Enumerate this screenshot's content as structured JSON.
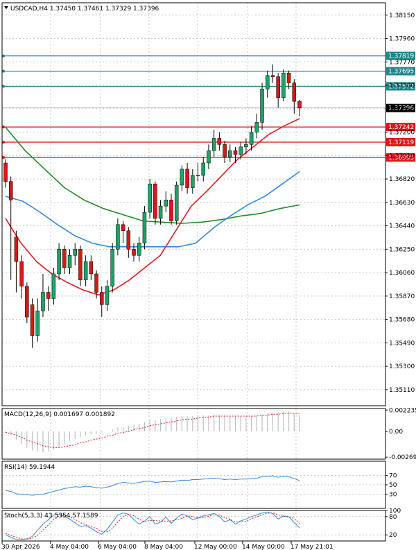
{
  "window_title": "USDCAD,H4",
  "ohlc": "1.37450 1.37461 1.37329 1.37396",
  "colors": {
    "bull": "#21a168",
    "bear": "#d21a1a",
    "sma_fast": "#e8171d",
    "sma_mid": "#2f8ae0",
    "sma_slow": "#1f8a2a",
    "level_resistance": "#1b8a8a",
    "level_support": "#e11515",
    "macd_signal": "#e8171d",
    "rsi": "#2f8ae0",
    "stoch_main": "#2f8ae0",
    "stoch_signal": "#e8171d"
  },
  "chart_data": [
    {
      "type": "candlestick",
      "name": "price",
      "header": "USDCAD,H4  1.37450 1.37461 1.37329 1.37396",
      "ylim": [
        1.3498,
        1.3825
      ],
      "y_ticks": [
        "1.38150",
        "1.37960",
        "1.37770",
        "1.37580",
        "1.37390",
        "1.37200",
        "1.37010",
        "1.36820",
        "1.36630",
        "1.36440",
        "1.36250",
        "1.36060",
        "1.35870",
        "1.35680",
        "1.35490",
        "1.35300",
        "1.35110"
      ],
      "x_labels": [
        "30 Apr 2026",
        "4 May 04:00",
        "6 May 04:00",
        "8 May 04:00",
        "12 May 00:00",
        "14 May 00:00",
        "17 May 21:01"
      ],
      "current_price_label": "1.37396",
      "levels": [
        {
          "value": 1.37819,
          "label": "1.37819",
          "kind": "resistance"
        },
        {
          "value": 1.37695,
          "label": "1.37695",
          "kind": "resistance"
        },
        {
          "value": 1.37572,
          "label": "1.37572",
          "kind": "resistance"
        },
        {
          "value": 1.37242,
          "label": "1.37242",
          "kind": "support"
        },
        {
          "value": 1.37119,
          "label": "1.37119",
          "kind": "support"
        },
        {
          "value": 1.36995,
          "label": "1.36995",
          "kind": "support"
        }
      ],
      "close": [
        1.368,
        1.3665,
        1.3615,
        1.3595,
        1.357,
        1.3555,
        1.3575,
        1.359,
        1.3585,
        1.3605,
        1.3625,
        1.361,
        1.362,
        1.3625,
        1.36,
        1.3615,
        1.3605,
        1.359,
        1.358,
        1.3595,
        1.3625,
        1.3645,
        1.364,
        1.3625,
        1.362,
        1.363,
        1.3655,
        1.3678,
        1.365,
        1.366,
        1.3665,
        1.3648,
        1.3677,
        1.369,
        1.3675,
        1.3685,
        1.3685,
        1.3695,
        1.3705,
        1.3715,
        1.371,
        1.37,
        1.3705,
        1.3702,
        1.3708,
        1.371,
        1.372,
        1.3728,
        1.3755,
        1.3766,
        1.3765,
        1.3748,
        1.3768,
        1.376,
        1.3745,
        1.374
      ],
      "candles": [
        {
          "o": 1.3695,
          "h": 1.3698,
          "l": 1.3675,
          "c": 1.368
        },
        {
          "o": 1.368,
          "h": 1.3684,
          "l": 1.36,
          "c": 1.3665
        },
        {
          "o": 1.3635,
          "h": 1.364,
          "l": 1.359,
          "c": 1.3615
        },
        {
          "o": 1.3615,
          "h": 1.362,
          "l": 1.3585,
          "c": 1.3595
        },
        {
          "o": 1.3595,
          "h": 1.3598,
          "l": 1.3565,
          "c": 1.357
        },
        {
          "o": 1.358,
          "h": 1.3585,
          "l": 1.3545,
          "c": 1.3555
        },
        {
          "o": 1.3555,
          "h": 1.3585,
          "l": 1.355,
          "c": 1.3575
        },
        {
          "o": 1.3575,
          "h": 1.3605,
          "l": 1.357,
          "c": 1.359
        },
        {
          "o": 1.359,
          "h": 1.3595,
          "l": 1.3575,
          "c": 1.3585
        },
        {
          "o": 1.3585,
          "h": 1.361,
          "l": 1.358,
          "c": 1.3605
        },
        {
          "o": 1.3605,
          "h": 1.363,
          "l": 1.36,
          "c": 1.3625
        },
        {
          "o": 1.3625,
          "h": 1.3628,
          "l": 1.3605,
          "c": 1.361
        },
        {
          "o": 1.361,
          "h": 1.3625,
          "l": 1.3605,
          "c": 1.362
        },
        {
          "o": 1.362,
          "h": 1.363,
          "l": 1.3612,
          "c": 1.3625
        },
        {
          "o": 1.3625,
          "h": 1.3628,
          "l": 1.3595,
          "c": 1.36
        },
        {
          "o": 1.36,
          "h": 1.362,
          "l": 1.3595,
          "c": 1.3615
        },
        {
          "o": 1.3615,
          "h": 1.362,
          "l": 1.36,
          "c": 1.3605
        },
        {
          "o": 1.3605,
          "h": 1.3608,
          "l": 1.3585,
          "c": 1.359
        },
        {
          "o": 1.359,
          "h": 1.3595,
          "l": 1.357,
          "c": 1.358
        },
        {
          "o": 1.358,
          "h": 1.36,
          "l": 1.3575,
          "c": 1.3595
        },
        {
          "o": 1.3595,
          "h": 1.363,
          "l": 1.359,
          "c": 1.3625
        },
        {
          "o": 1.3625,
          "h": 1.365,
          "l": 1.362,
          "c": 1.3645
        },
        {
          "o": 1.3645,
          "h": 1.3648,
          "l": 1.363,
          "c": 1.364
        },
        {
          "o": 1.364,
          "h": 1.3643,
          "l": 1.3618,
          "c": 1.3625
        },
        {
          "o": 1.3625,
          "h": 1.363,
          "l": 1.3615,
          "c": 1.362
        },
        {
          "o": 1.362,
          "h": 1.3635,
          "l": 1.3615,
          "c": 1.363
        },
        {
          "o": 1.363,
          "h": 1.366,
          "l": 1.3625,
          "c": 1.3655
        },
        {
          "o": 1.3655,
          "h": 1.3682,
          "l": 1.365,
          "c": 1.3678
        },
        {
          "o": 1.3678,
          "h": 1.368,
          "l": 1.3645,
          "c": 1.365
        },
        {
          "o": 1.365,
          "h": 1.3665,
          "l": 1.3645,
          "c": 1.366
        },
        {
          "o": 1.366,
          "h": 1.3672,
          "l": 1.3655,
          "c": 1.3665
        },
        {
          "o": 1.3665,
          "h": 1.367,
          "l": 1.3645,
          "c": 1.3648
        },
        {
          "o": 1.3648,
          "h": 1.368,
          "l": 1.3645,
          "c": 1.3677
        },
        {
          "o": 1.3677,
          "h": 1.3693,
          "l": 1.3672,
          "c": 1.369
        },
        {
          "o": 1.369,
          "h": 1.3695,
          "l": 1.367,
          "c": 1.3675
        },
        {
          "o": 1.3675,
          "h": 1.369,
          "l": 1.367,
          "c": 1.3685
        },
        {
          "o": 1.3685,
          "h": 1.3695,
          "l": 1.368,
          "c": 1.3685
        },
        {
          "o": 1.3685,
          "h": 1.37,
          "l": 1.368,
          "c": 1.3695
        },
        {
          "o": 1.3695,
          "h": 1.371,
          "l": 1.369,
          "c": 1.3705
        },
        {
          "o": 1.3705,
          "h": 1.3722,
          "l": 1.37,
          "c": 1.3715
        },
        {
          "o": 1.3715,
          "h": 1.372,
          "l": 1.3705,
          "c": 1.371
        },
        {
          "o": 1.371,
          "h": 1.3713,
          "l": 1.3695,
          "c": 1.37
        },
        {
          "o": 1.37,
          "h": 1.371,
          "l": 1.3696,
          "c": 1.3705
        },
        {
          "o": 1.3705,
          "h": 1.3708,
          "l": 1.3695,
          "c": 1.3702
        },
        {
          "o": 1.3702,
          "h": 1.3712,
          "l": 1.3698,
          "c": 1.3708
        },
        {
          "o": 1.3708,
          "h": 1.3715,
          "l": 1.3702,
          "c": 1.371
        },
        {
          "o": 1.371,
          "h": 1.3725,
          "l": 1.3705,
          "c": 1.372
        },
        {
          "o": 1.372,
          "h": 1.3735,
          "l": 1.3715,
          "c": 1.3728
        },
        {
          "o": 1.3728,
          "h": 1.376,
          "l": 1.3722,
          "c": 1.3755
        },
        {
          "o": 1.3755,
          "h": 1.377,
          "l": 1.3748,
          "c": 1.3766
        },
        {
          "o": 1.3766,
          "h": 1.3775,
          "l": 1.376,
          "c": 1.3765
        },
        {
          "o": 1.3765,
          "h": 1.3768,
          "l": 1.374,
          "c": 1.3748
        },
        {
          "o": 1.3748,
          "h": 1.3771,
          "l": 1.3745,
          "c": 1.3768
        },
        {
          "o": 1.3768,
          "h": 1.377,
          "l": 1.3755,
          "c": 1.376
        },
        {
          "o": 1.376,
          "h": 1.3763,
          "l": 1.3735,
          "c": 1.3745
        },
        {
          "o": 1.3745,
          "h": 1.37461,
          "l": 1.37329,
          "c": 1.37396
        }
      ],
      "sma_fast": [
        1.365,
        1.363,
        1.3615,
        1.3605,
        1.3598,
        1.3592,
        1.3588,
        1.3592,
        1.36,
        1.361,
        1.362,
        1.364,
        1.366,
        1.3672,
        1.3685,
        1.3698,
        1.3708,
        1.3718,
        1.3725,
        1.3731
      ],
      "sma_mid": [
        1.3668,
        1.3664,
        1.3655,
        1.3645,
        1.3636,
        1.363,
        1.3627,
        1.3627,
        1.3627,
        1.3627,
        1.3627,
        1.363,
        1.3642,
        1.3652,
        1.3661,
        1.3668,
        1.3678,
        1.3688
      ],
      "sma_slow": [
        1.3724,
        1.3705,
        1.369,
        1.3675,
        1.3665,
        1.3658,
        1.3653,
        1.3648,
        1.3647,
        1.3646,
        1.3647,
        1.3649,
        1.3652,
        1.3654,
        1.3658,
        1.3661
      ],
      "series_style": "moving averages"
    },
    {
      "type": "bar",
      "name": "MACD(12,26,9)",
      "header": "MACD(12,26,9) 0.001697 0.001892",
      "ylim": [
        -0.0029,
        0.0024
      ],
      "y_ticks": [
        "0.002235",
        "0.00",
        "-0.002691"
      ],
      "values": [
        -0.0001,
        -0.0004,
        -0.0009,
        -0.0013,
        -0.0017,
        -0.002,
        -0.0021,
        -0.0022,
        -0.0021,
        -0.0019,
        -0.0016,
        -0.0013,
        -0.001,
        -0.0008,
        -0.0006,
        -0.0004,
        -0.0003,
        -0.0002,
        -0.0001,
        0.0,
        0.0002,
        0.0004,
        0.0005,
        0.0006,
        0.0007,
        0.0008,
        0.001,
        0.0012,
        0.0012,
        0.0013,
        0.0014,
        0.0014,
        0.0015,
        0.0016,
        0.0016,
        0.0016,
        0.0017,
        0.0017,
        0.0017,
        0.0018,
        0.0017,
        0.0017,
        0.0016,
        0.0016,
        0.0016,
        0.0016,
        0.0016,
        0.0017,
        0.0018,
        0.0019,
        0.002,
        0.002,
        0.0021,
        0.0021,
        0.0019,
        0.0017
      ],
      "signal": [
        -0.0001,
        -0.0002,
        -0.0004,
        -0.0006,
        -0.0009,
        -0.0011,
        -0.0013,
        -0.0015,
        -0.0016,
        -0.0017,
        -0.0017,
        -0.0016,
        -0.0015,
        -0.0014,
        -0.0012,
        -0.0011,
        -0.0009,
        -0.0008,
        -0.0007,
        -0.0005,
        -0.0004,
        -0.0002,
        -0.0001,
        0.0,
        0.0002,
        0.0003,
        0.0004,
        0.0006,
        0.0007,
        0.0008,
        0.0009,
        0.001,
        0.0011,
        0.0012,
        0.0013,
        0.0013,
        0.0014,
        0.0015,
        0.0015,
        0.0016,
        0.0016,
        0.0016,
        0.0016,
        0.0016,
        0.0016,
        0.0016,
        0.0016,
        0.0016,
        0.0017,
        0.0017,
        0.0018,
        0.0018,
        0.0019,
        0.0019,
        0.0019,
        0.0019
      ]
    },
    {
      "type": "line",
      "name": "RSI(14)",
      "header": "RSI(14) 59.1944",
      "ylim": [
        0,
        100
      ],
      "y_ticks": [
        "70",
        "50",
        "30"
      ],
      "values": [
        38,
        36,
        31,
        30,
        29,
        28,
        29,
        30,
        33,
        36,
        39,
        42,
        44,
        46,
        45,
        47,
        46,
        44,
        43,
        45,
        48,
        53,
        55,
        54,
        53,
        55,
        57,
        58,
        55,
        56,
        57,
        56,
        58,
        60,
        59,
        61,
        61,
        62,
        63,
        64,
        63,
        61,
        62,
        61,
        62,
        62,
        63,
        64,
        67,
        68,
        69,
        66,
        68,
        67,
        63,
        59
      ]
    },
    {
      "type": "line",
      "name": "Stoch(5,3,3)",
      "header": "Stoch(5,3,3) 43.5354 57.1589",
      "ylim": [
        0,
        100
      ],
      "y_ticks": [
        "100",
        "80",
        "20"
      ],
      "values": [
        20,
        12,
        5,
        4,
        7,
        15,
        35,
        55,
        70,
        85,
        88,
        80,
        72,
        60,
        48,
        50,
        42,
        30,
        22,
        38,
        62,
        85,
        92,
        88,
        70,
        55,
        65,
        80,
        55,
        62,
        78,
        58,
        75,
        88,
        82,
        70,
        75,
        82,
        86,
        90,
        80,
        62,
        70,
        55,
        66,
        72,
        80,
        85,
        92,
        95,
        90,
        72,
        82,
        80,
        60,
        43.5
      ],
      "signal": [
        25,
        18,
        12,
        7,
        6,
        9,
        19,
        35,
        53,
        70,
        81,
        84,
        79,
        71,
        60,
        53,
        47,
        41,
        31,
        30,
        41,
        62,
        80,
        88,
        83,
        71,
        63,
        67,
        67,
        66,
        65,
        66,
        70,
        74,
        82,
        80,
        76,
        76,
        81,
        86,
        85,
        77,
        71,
        62,
        64,
        64,
        73,
        79,
        86,
        91,
        92,
        86,
        81,
        78,
        74,
        57.2
      ]
    }
  ]
}
